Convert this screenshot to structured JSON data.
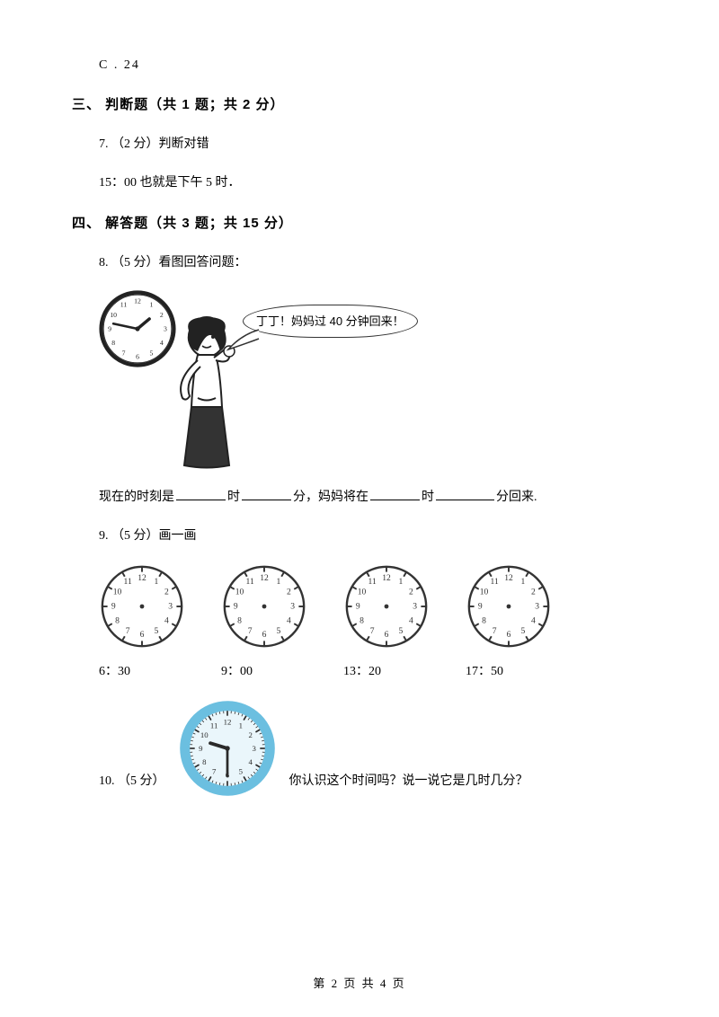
{
  "option_c": "C . 24",
  "section3": {
    "heading": "三、 判断题（共 1 题；共 2 分）",
    "q7": {
      "prompt": "7. （2 分）判断对错",
      "text": "15：00 也就是下午 5 时．"
    }
  },
  "section4": {
    "heading": "四、 解答题（共 3 题；共 15 分）",
    "q8": {
      "prompt": "8. （5 分）看图回答问题：",
      "bubble": "丁丁！妈妈过 40 分钟回来！",
      "clock": {
        "face_stroke": "#222222",
        "hand_stroke": "#222222",
        "numbers": [
          "12",
          "1",
          "2",
          "3",
          "4",
          "5",
          "6",
          "7",
          "8",
          "9",
          "10",
          "11"
        ],
        "hour_angle": 50,
        "minute_angle": 282
      },
      "fill": {
        "pre": "现在的时刻是",
        "m1": "时",
        "m2": "分，妈妈将在",
        "m3": "时",
        "m4": "分回来."
      }
    },
    "q9": {
      "prompt": "9. （5 分）画一画",
      "clocks": [
        {
          "label": "6：30"
        },
        {
          "label": "9：00"
        },
        {
          "label": "13：20"
        },
        {
          "label": "17：50"
        }
      ],
      "clock_style": {
        "stroke": "#333333",
        "face_fill": "#ffffff",
        "numbers": [
          "12",
          "1",
          "2",
          "3",
          "4",
          "5",
          "6",
          "7",
          "8",
          "9",
          "10",
          "11"
        ]
      }
    },
    "q10": {
      "prefix": "10. （5 分）",
      "question": "你认识这个时间吗？说一说它是几时几分？",
      "clock": {
        "rim_color": "#6bbfe0",
        "face_fill": "#eaf6fb",
        "hand_color": "#2a2a2a",
        "tick_color": "#2a2a2a",
        "hour_angle": 287,
        "minute_angle": 180,
        "numbers": [
          "12",
          "1",
          "2",
          "3",
          "4",
          "5",
          "6",
          "7",
          "8",
          "9",
          "10",
          "11"
        ]
      }
    }
  },
  "footer": "第 2 页 共 4 页"
}
